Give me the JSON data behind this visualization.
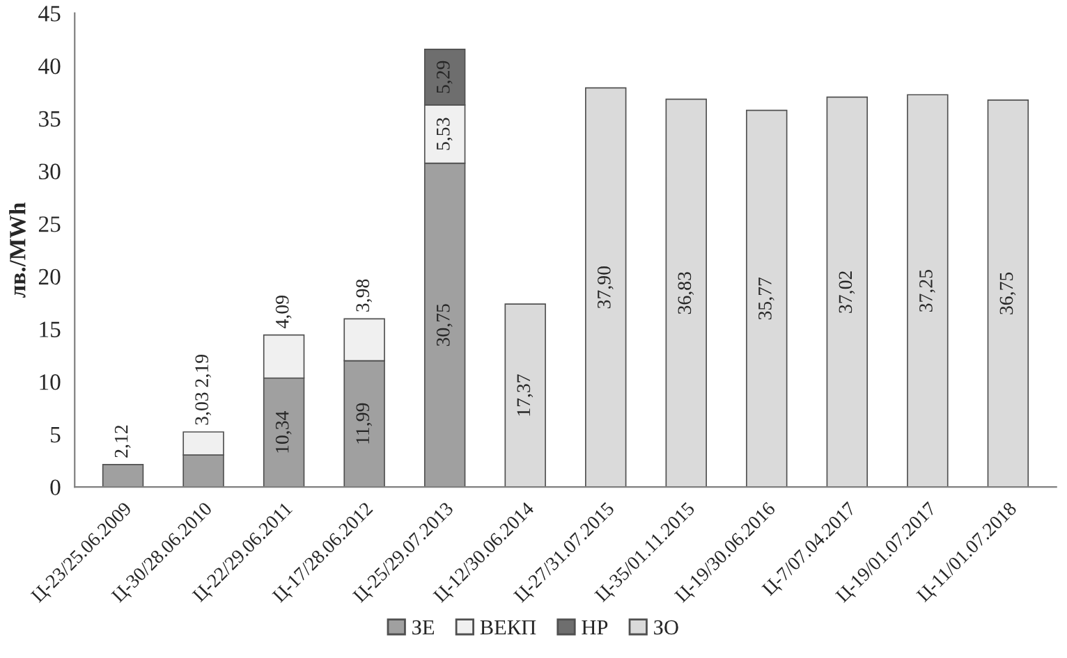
{
  "chart_data": {
    "type": "bar",
    "stacked": true,
    "ylabel": "лв./MWh",
    "ylim": [
      0,
      45
    ],
    "yticks": [
      0,
      5,
      10,
      15,
      20,
      25,
      30,
      35,
      40,
      45
    ],
    "grid": false,
    "legend": "bottom",
    "categories": [
      "Ц-23/25.06.2009",
      "Ц-30/28.06.2010",
      "Ц-22/29.06.2011",
      "Ц-17/28.06.2012",
      "Ц-25/29.07.2013",
      "Ц-12/30.06.2014",
      "Ц-27/31.07.2015",
      "Ц-35/01.11.2015",
      "Ц-19/30.06.2016",
      "Ц-7/07.04.2017",
      "Ц-19/01.07.2017",
      "Ц-11/01.07.2018"
    ],
    "series": [
      {
        "name": "ЗЕ",
        "color": "#a0a0a0",
        "values": [
          2.12,
          3.03,
          10.34,
          11.99,
          30.75,
          null,
          null,
          null,
          null,
          null,
          null,
          null
        ],
        "value_labels": [
          "2,12",
          "3,03",
          "10,34",
          "11,99",
          "30,75",
          null,
          null,
          null,
          null,
          null,
          null,
          null
        ]
      },
      {
        "name": "ВЕКП",
        "color": "#f0f0f0",
        "values": [
          null,
          2.19,
          4.09,
          3.98,
          5.53,
          null,
          null,
          null,
          null,
          null,
          null,
          null
        ],
        "value_labels": [
          null,
          "2,19",
          "4,09",
          "3,98",
          "5,53",
          null,
          null,
          null,
          null,
          null,
          null,
          null
        ]
      },
      {
        "name": "НР",
        "color": "#6e6e6e",
        "values": [
          null,
          null,
          null,
          null,
          5.29,
          null,
          null,
          null,
          null,
          null,
          null,
          null
        ],
        "value_labels": [
          null,
          null,
          null,
          null,
          "5,29",
          null,
          null,
          null,
          null,
          null,
          null,
          null
        ]
      },
      {
        "name": "ЗО",
        "color": "#dadada",
        "values": [
          null,
          null,
          null,
          null,
          null,
          17.37,
          37.9,
          36.83,
          35.77,
          37.02,
          37.25,
          36.75
        ],
        "value_labels": [
          null,
          null,
          null,
          null,
          null,
          "17,37",
          "37,90",
          "36,83",
          "35,77",
          "37,02",
          "37,25",
          "36,75"
        ]
      }
    ]
  }
}
